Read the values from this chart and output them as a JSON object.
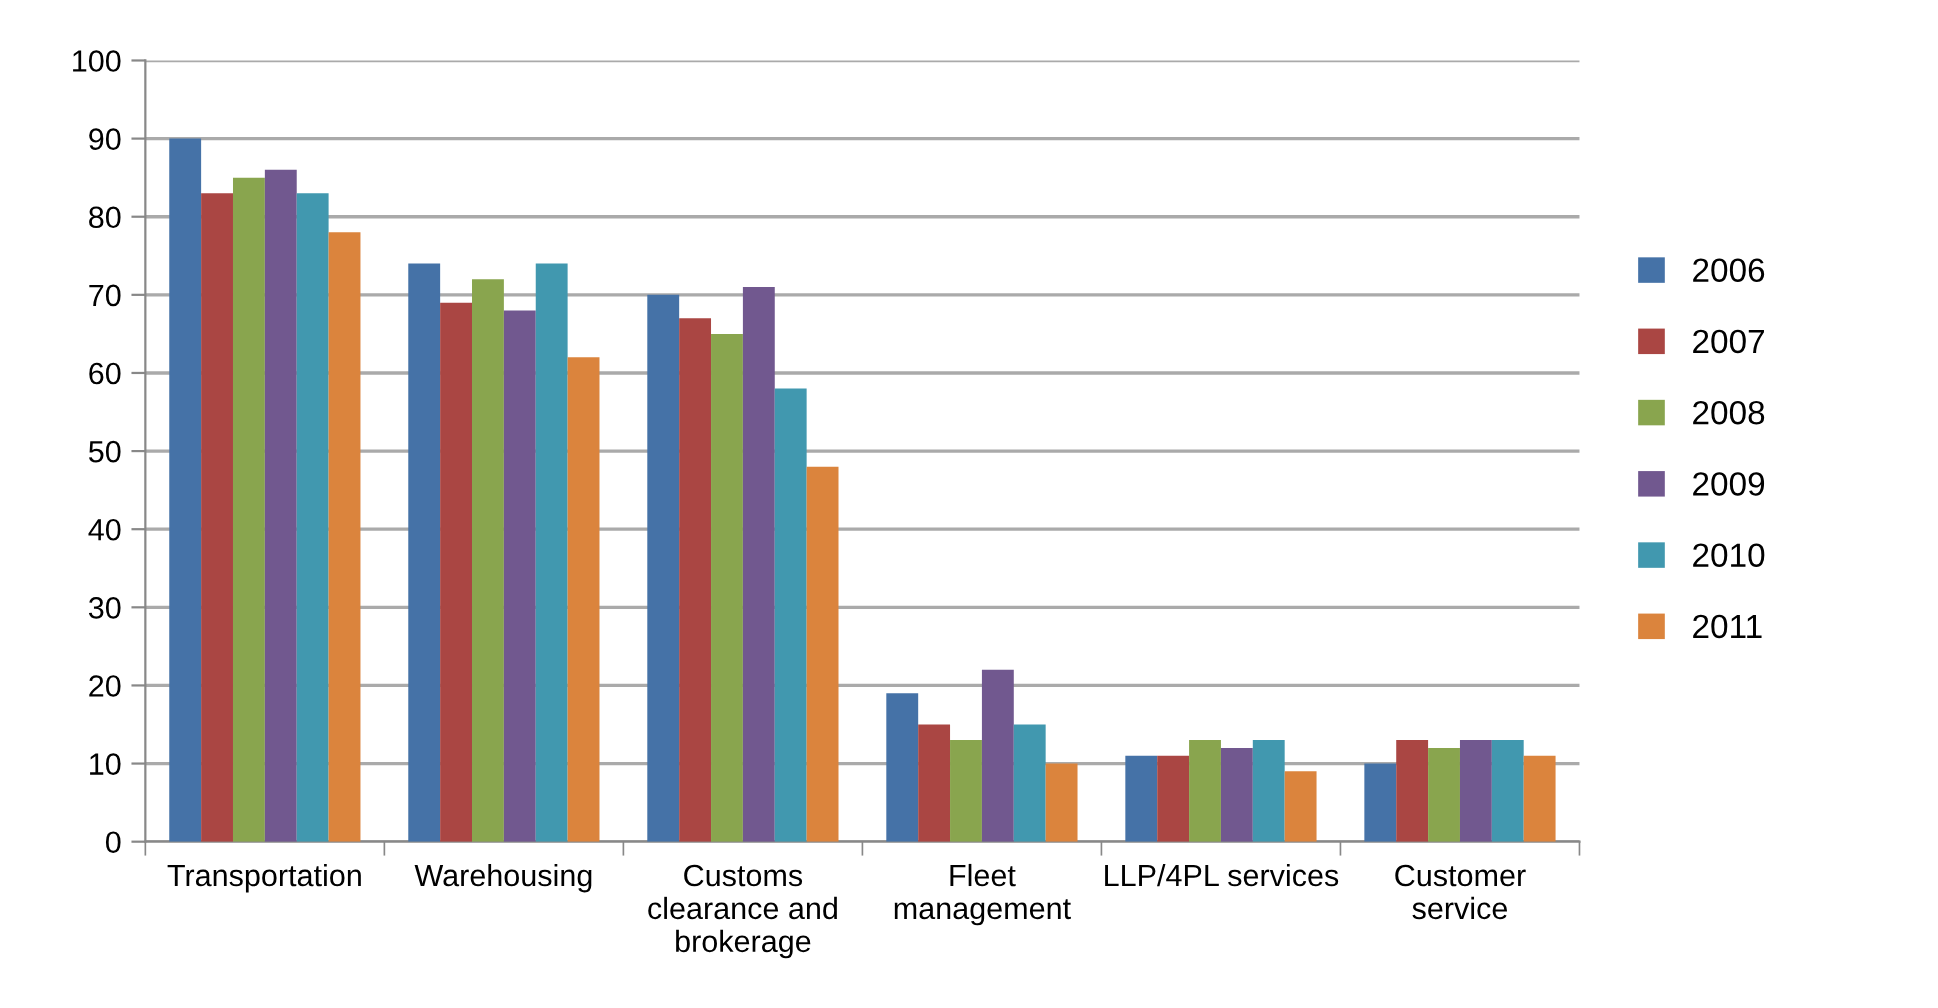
{
  "chart_data": {
    "type": "bar",
    "categories": [
      "Transportation",
      "Warehousing",
      "Customs\nclearance and\nbrokerage",
      "Fleet\nmanagement",
      "LLP/4PL services",
      "Customer\nservice"
    ],
    "series": [
      {
        "name": "2006",
        "color": "#4572a7",
        "values": [
          90,
          74,
          70,
          19,
          11,
          10
        ]
      },
      {
        "name": "2007",
        "color": "#aa4643",
        "values": [
          83,
          69,
          67,
          15,
          11,
          13
        ]
      },
      {
        "name": "2008",
        "color": "#89a54e",
        "values": [
          85,
          72,
          65,
          13,
          13,
          12
        ]
      },
      {
        "name": "2009",
        "color": "#71588f",
        "values": [
          86,
          68,
          71,
          22,
          12,
          13
        ]
      },
      {
        "name": "2010",
        "color": "#4198af",
        "values": [
          83,
          74,
          58,
          15,
          13,
          13
        ]
      },
      {
        "name": "2011",
        "color": "#db843d",
        "values": [
          78,
          62,
          48,
          10,
          9,
          11
        ]
      }
    ],
    "ylim": [
      0,
      100
    ],
    "yticks": [
      0,
      10,
      20,
      30,
      40,
      50,
      60,
      70,
      80,
      90,
      100
    ],
    "grid": "y",
    "legend": "right"
  }
}
